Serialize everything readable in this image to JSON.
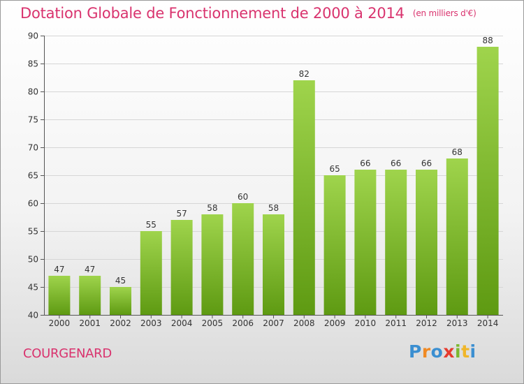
{
  "title": "Dotation Globale de Fonctionnement de 2000 à 2014",
  "unit_note": "(en milliers d'€)",
  "town": "COURGENARD",
  "brand": "Proxiti",
  "colors": {
    "title": "#d9336e",
    "bar_top": "#9fd44c",
    "bar_bottom": "#5e9a12"
  },
  "chart_data": {
    "type": "bar",
    "categories": [
      "2000",
      "2001",
      "2002",
      "2003",
      "2004",
      "2005",
      "2006",
      "2007",
      "2008",
      "2009",
      "2010",
      "2011",
      "2012",
      "2013",
      "2014"
    ],
    "values": [
      47,
      47,
      45,
      55,
      57,
      58,
      60,
      58,
      82,
      65,
      66,
      66,
      66,
      68,
      88
    ],
    "ylim": [
      40,
      90
    ],
    "yticks": [
      40,
      45,
      50,
      55,
      60,
      65,
      70,
      75,
      80,
      85,
      90
    ],
    "xlabel": "",
    "ylabel": "",
    "grid": true,
    "data_labels": true
  }
}
